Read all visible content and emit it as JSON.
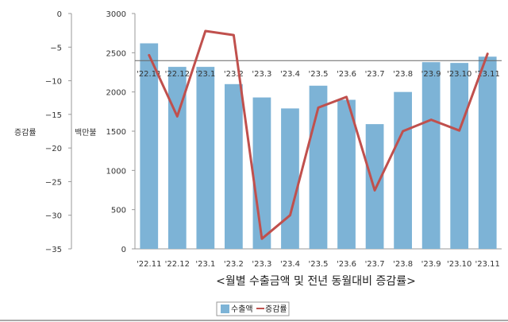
{
  "chart_data": {
    "type": "bar",
    "caption": "<월별 수출금액 및 전년 동월대비 증감률>",
    "categories": [
      "'22.11",
      "'22.12",
      "'23.1",
      "'23.2",
      "'23.3",
      "'23.4",
      "'23.5",
      "'23.6",
      "'23.7",
      "'23.8",
      "'23.9",
      "'23.10",
      "'23.11"
    ],
    "series": [
      {
        "name": "수출액",
        "kind": "bar",
        "axis": "right",
        "color": "#7db3d6",
        "values": [
          2620,
          2320,
          2320,
          2100,
          1930,
          1790,
          2080,
          1900,
          1590,
          2000,
          2380,
          2370,
          2450
        ]
      },
      {
        "name": "증감률",
        "kind": "line",
        "axis": "left",
        "color": "#c0504d",
        "values": [
          -6.2,
          -15.3,
          -2.6,
          -3.2,
          -33.5,
          -30.0,
          -14.0,
          -12.4,
          -26.3,
          -17.5,
          -15.8,
          -17.4,
          -6.0
        ]
      }
    ],
    "y_left": {
      "label": "증감률",
      "range": [
        -35,
        0
      ],
      "ticks": [
        "0",
        "−5",
        "−10",
        "−15",
        "−20",
        "−25",
        "−30",
        "−35"
      ]
    },
    "y_right": {
      "label": "백만불",
      "range": [
        0,
        3000
      ],
      "ticks": [
        "3000",
        "2500",
        "2000",
        "1500",
        "1000",
        "500",
        "0"
      ]
    },
    "legend_position": "bottom-center",
    "grid": false
  }
}
